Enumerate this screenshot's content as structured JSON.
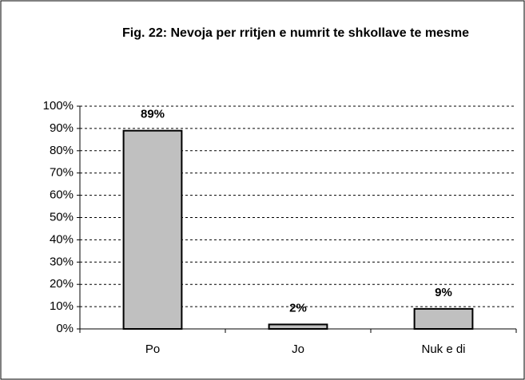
{
  "chart_data": {
    "type": "bar",
    "title": "Fig. 22: Nevoja per rritjen e numrit te shkollave te mesme",
    "categories": [
      "Po",
      "Jo",
      "Nuk e di"
    ],
    "values": [
      89,
      2,
      9
    ],
    "value_labels": [
      "89%",
      "2%",
      "9%"
    ],
    "color": "#c0c0c0",
    "ylim": [
      0,
      100
    ],
    "yticks": [
      {
        "value": 0,
        "label": "0%"
      },
      {
        "value": 10,
        "label": "10%"
      },
      {
        "value": 20,
        "label": "20%"
      },
      {
        "value": 30,
        "label": "30%"
      },
      {
        "value": 40,
        "label": "40%"
      },
      {
        "value": 50,
        "label": "50%"
      },
      {
        "value": 60,
        "label": "60%"
      },
      {
        "value": 70,
        "label": "70%"
      },
      {
        "value": 80,
        "label": "80%"
      },
      {
        "value": 90,
        "label": "90%"
      },
      {
        "value": 100,
        "label": "100%"
      }
    ],
    "grid": true
  }
}
